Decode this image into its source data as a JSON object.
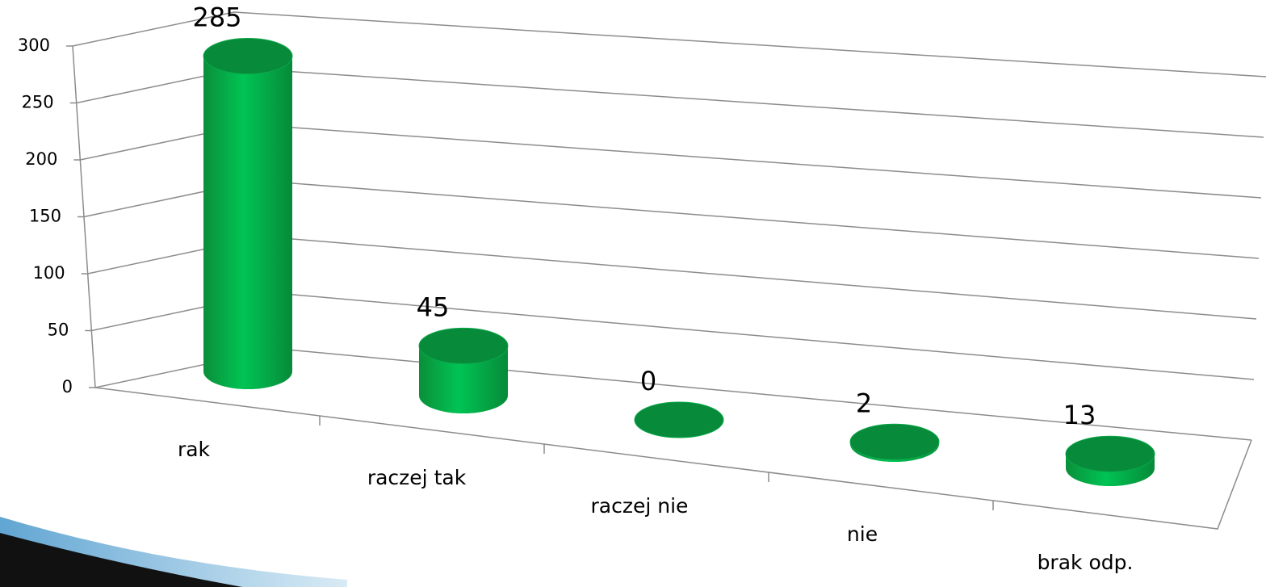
{
  "chart_data": {
    "type": "bar3d-cylinder",
    "categories": [
      "rak",
      "raczej tak",
      "raczej nie",
      "nie",
      "brak odp."
    ],
    "values": [
      285,
      45,
      0,
      2,
      13
    ],
    "color": "#00b050",
    "ylim": [
      0,
      300
    ],
    "yticks": [
      0,
      50,
      100,
      150,
      200,
      250,
      300
    ],
    "grid": true
  }
}
